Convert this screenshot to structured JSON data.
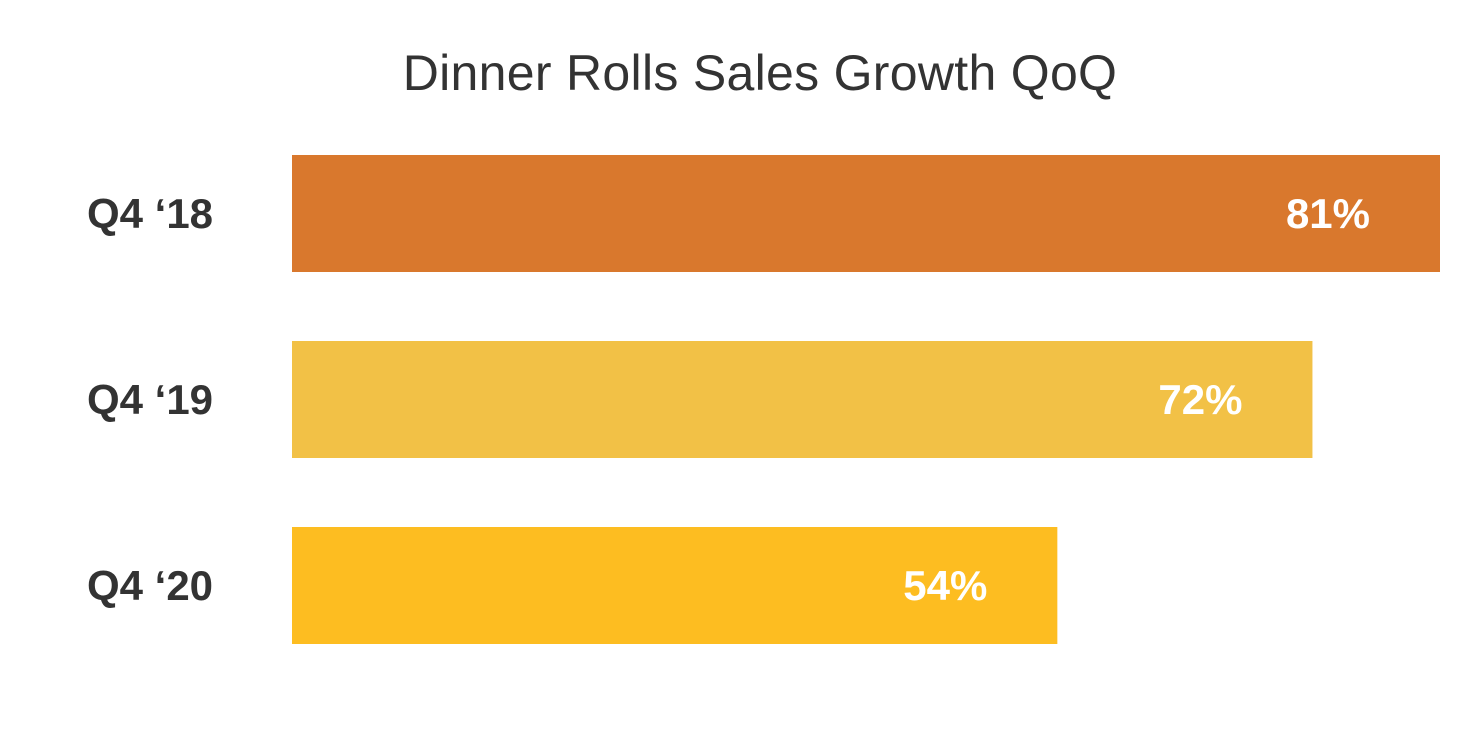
{
  "chart_data": {
    "type": "bar",
    "orientation": "horizontal",
    "title": "Dinner Rolls Sales Growth QoQ",
    "xlabel": "",
    "ylabel": "",
    "xlim": [
      0,
      81
    ],
    "grid": false,
    "categories": [
      "Q4 ‘18",
      "Q4 ‘19",
      "Q4 ‘20"
    ],
    "values": [
      81,
      72,
      54
    ],
    "value_labels": [
      "81%",
      "72%",
      "54%"
    ],
    "colors": [
      "#D9782D",
      "#F2C146",
      "#FDBD21"
    ],
    "label_color": "#FFFFFF",
    "text_color": "#333333"
  }
}
